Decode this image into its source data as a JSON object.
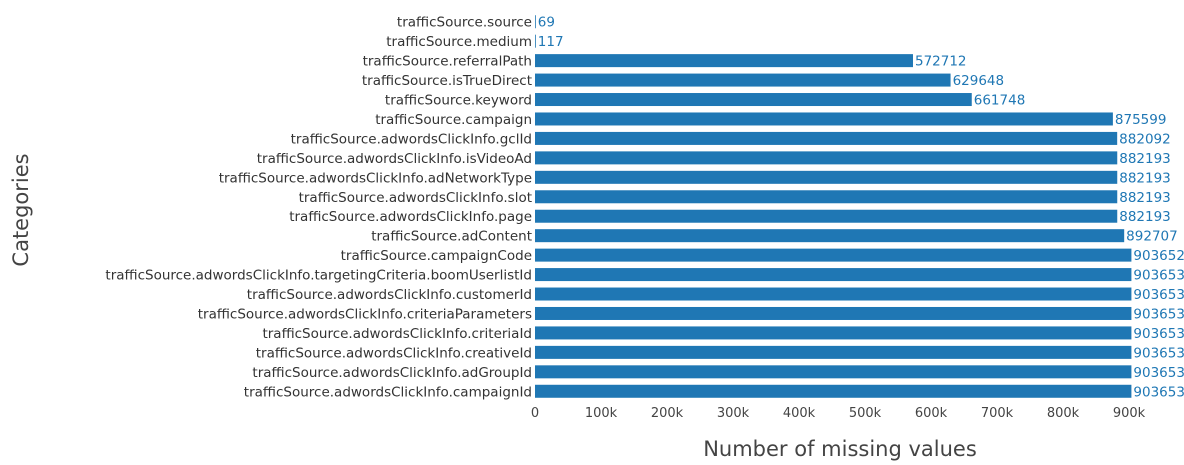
{
  "chart_data": {
    "type": "bar",
    "orientation": "horizontal",
    "xlabel": "Number of missing values",
    "ylabel": "Categories",
    "xlim": [
      0,
      1000000
    ],
    "xticks": [
      0,
      100000,
      200000,
      300000,
      400000,
      500000,
      600000,
      700000,
      800000,
      900000
    ],
    "xtick_labels": [
      "0",
      "100k",
      "200k",
      "300k",
      "400k",
      "500k",
      "600k",
      "700k",
      "800k",
      "900k"
    ],
    "bar_color": "#1f77b4",
    "label_color": "#1f77b4",
    "grid": false,
    "categories": [
      "trafficSource.source",
      "trafficSource.medium",
      "trafficSource.referralPath",
      "trafficSource.isTrueDirect",
      "trafficSource.keyword",
      "trafficSource.campaign",
      "trafficSource.adwordsClickInfo.gclId",
      "trafficSource.adwordsClickInfo.isVideoAd",
      "trafficSource.adwordsClickInfo.adNetworkType",
      "trafficSource.adwordsClickInfo.slot",
      "trafficSource.adwordsClickInfo.page",
      "trafficSource.adContent",
      "trafficSource.campaignCode",
      "trafficSource.adwordsClickInfo.targetingCriteria.boomUserlistId",
      "trafficSource.adwordsClickInfo.customerId",
      "trafficSource.adwordsClickInfo.criteriaParameters",
      "trafficSource.adwordsClickInfo.criteriaId",
      "trafficSource.adwordsClickInfo.creativeId",
      "trafficSource.adwordsClickInfo.adGroupId",
      "trafficSource.adwordsClickInfo.campaignId"
    ],
    "values": [
      69,
      117,
      572712,
      629648,
      661748,
      875599,
      882092,
      882193,
      882193,
      882193,
      882193,
      892707,
      903652,
      903653,
      903653,
      903653,
      903653,
      903653,
      903653,
      903653
    ]
  }
}
